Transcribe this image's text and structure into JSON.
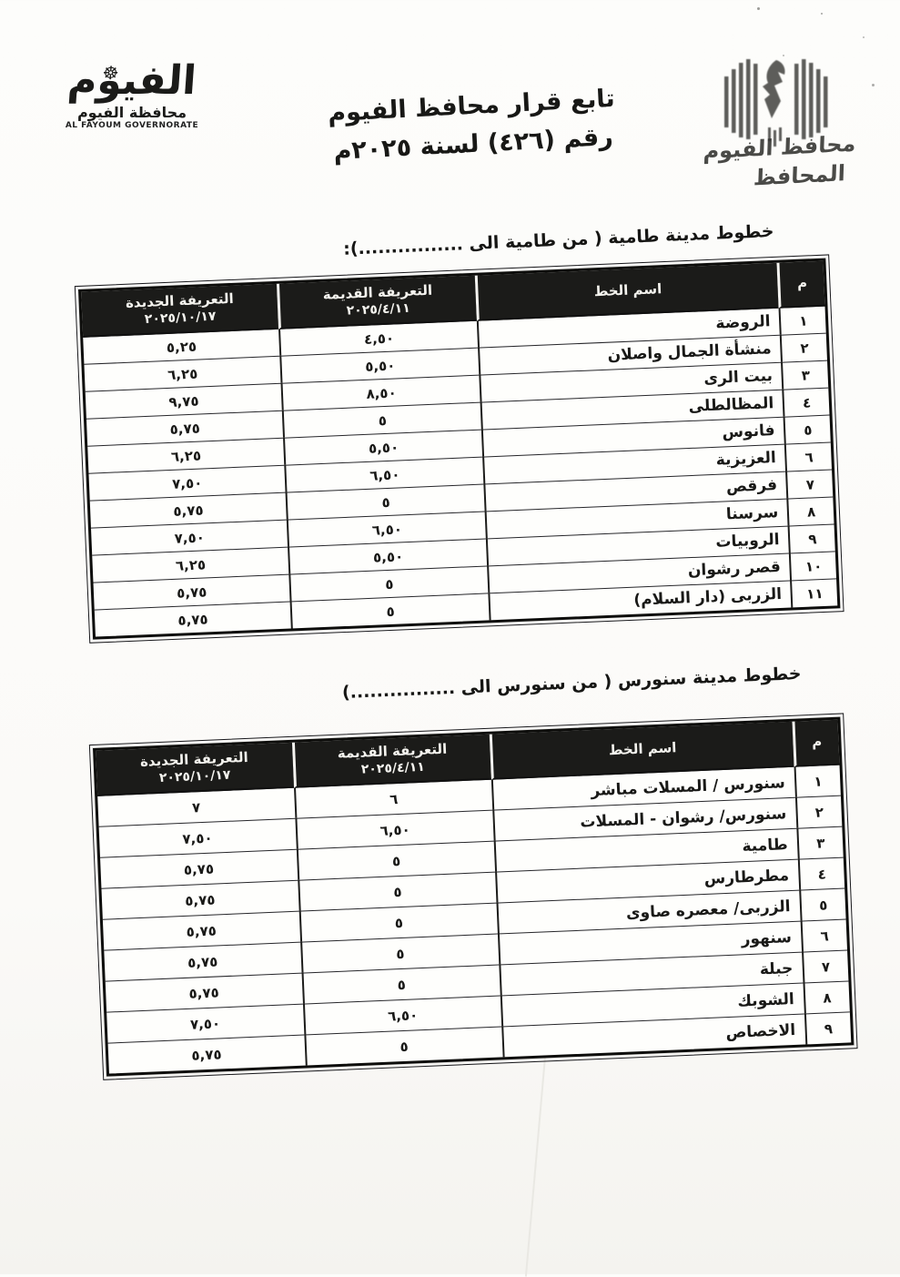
{
  "page": {
    "logo": {
      "calligraphy": "الفيوم",
      "wheel_icon": "☸",
      "arabic_name": "محافظة الفيوم",
      "english_name": "AL FAYOUM GOVERNORATE"
    },
    "title_line1": "تابع قرار محافظ الفيوم",
    "title_line2": "رقم (٤٢٦) لسنة ٢٠٢٥م",
    "stamp": {
      "line1": "محافظ الفيوم",
      "line2": "المحافظ"
    }
  },
  "tables": [
    {
      "section_title": "خطوط مدينة طامية ( من طامية الى ................):",
      "headers": {
        "index": "م",
        "line_name": "اسم الخط",
        "old_label": "التعريفة القديمة",
        "old_date": "٢٠٢٥/٤/١١",
        "new_label": "التعريفة الجديدة",
        "new_date": "٢٠٢٥/١٠/١٧"
      },
      "rows": [
        {
          "no": "١",
          "name": "الروضة",
          "old": "٤,٥٠",
          "new": "٥,٢٥"
        },
        {
          "no": "٢",
          "name": "منشأة الجمال واصلان",
          "old": "٥,٥٠",
          "new": "٦,٢٥"
        },
        {
          "no": "٣",
          "name": "بيت الرى",
          "old": "٨,٥٠",
          "new": "٩,٧٥"
        },
        {
          "no": "٤",
          "name": "المظالطلى",
          "old": "٥",
          "new": "٥,٧٥"
        },
        {
          "no": "٥",
          "name": "فانوس",
          "old": "٥,٥٠",
          "new": "٦,٢٥"
        },
        {
          "no": "٦",
          "name": "العزيزية",
          "old": "٦,٥٠",
          "new": "٧,٥٠"
        },
        {
          "no": "٧",
          "name": "فرقص",
          "old": "٥",
          "new": "٥,٧٥"
        },
        {
          "no": "٨",
          "name": "سرسنا",
          "old": "٦,٥٠",
          "new": "٧,٥٠"
        },
        {
          "no": "٩",
          "name": "الروبيات",
          "old": "٥,٥٠",
          "new": "٦,٢٥"
        },
        {
          "no": "١٠",
          "name": "قصر رشوان",
          "old": "٥",
          "new": "٥,٧٥"
        },
        {
          "no": "١١",
          "name": "الزربى (دار السلام)",
          "old": "٥",
          "new": "٥,٧٥"
        }
      ]
    },
    {
      "section_title": "خطوط مدينة سنورس ( من سنورس الى ................)",
      "headers": {
        "index": "م",
        "line_name": "اسم الخط",
        "old_label": "التعريفة القديمة",
        "old_date": "٢٠٢٥/٤/١١",
        "new_label": "التعريفة الجديدة",
        "new_date": "٢٠٢٥/١٠/١٧"
      },
      "rows": [
        {
          "no": "١",
          "name": "سنورس / المسلات مباشر",
          "old": "٦",
          "new": "٧"
        },
        {
          "no": "٢",
          "name": "سنورس/ رشوان - المسلات",
          "old": "٦,٥٠",
          "new": "٧,٥٠"
        },
        {
          "no": "٣",
          "name": "طامية",
          "old": "٥",
          "new": "٥,٧٥"
        },
        {
          "no": "٤",
          "name": "مطرطارس",
          "old": "٥",
          "new": "٥,٧٥"
        },
        {
          "no": "٥",
          "name": "الزربى/ معصره صاوى",
          "old": "٥",
          "new": "٥,٧٥"
        },
        {
          "no": "٦",
          "name": "سنهور",
          "old": "٥",
          "new": "٥,٧٥"
        },
        {
          "no": "٧",
          "name": "جبلة",
          "old": "٥",
          "new": "٥,٧٥"
        },
        {
          "no": "٨",
          "name": "الشوبك",
          "old": "٦,٥٠",
          "new": "٧,٥٠"
        },
        {
          "no": "٩",
          "name": "الاخصاص",
          "old": "٥",
          "new": "٥,٧٥"
        }
      ]
    }
  ]
}
